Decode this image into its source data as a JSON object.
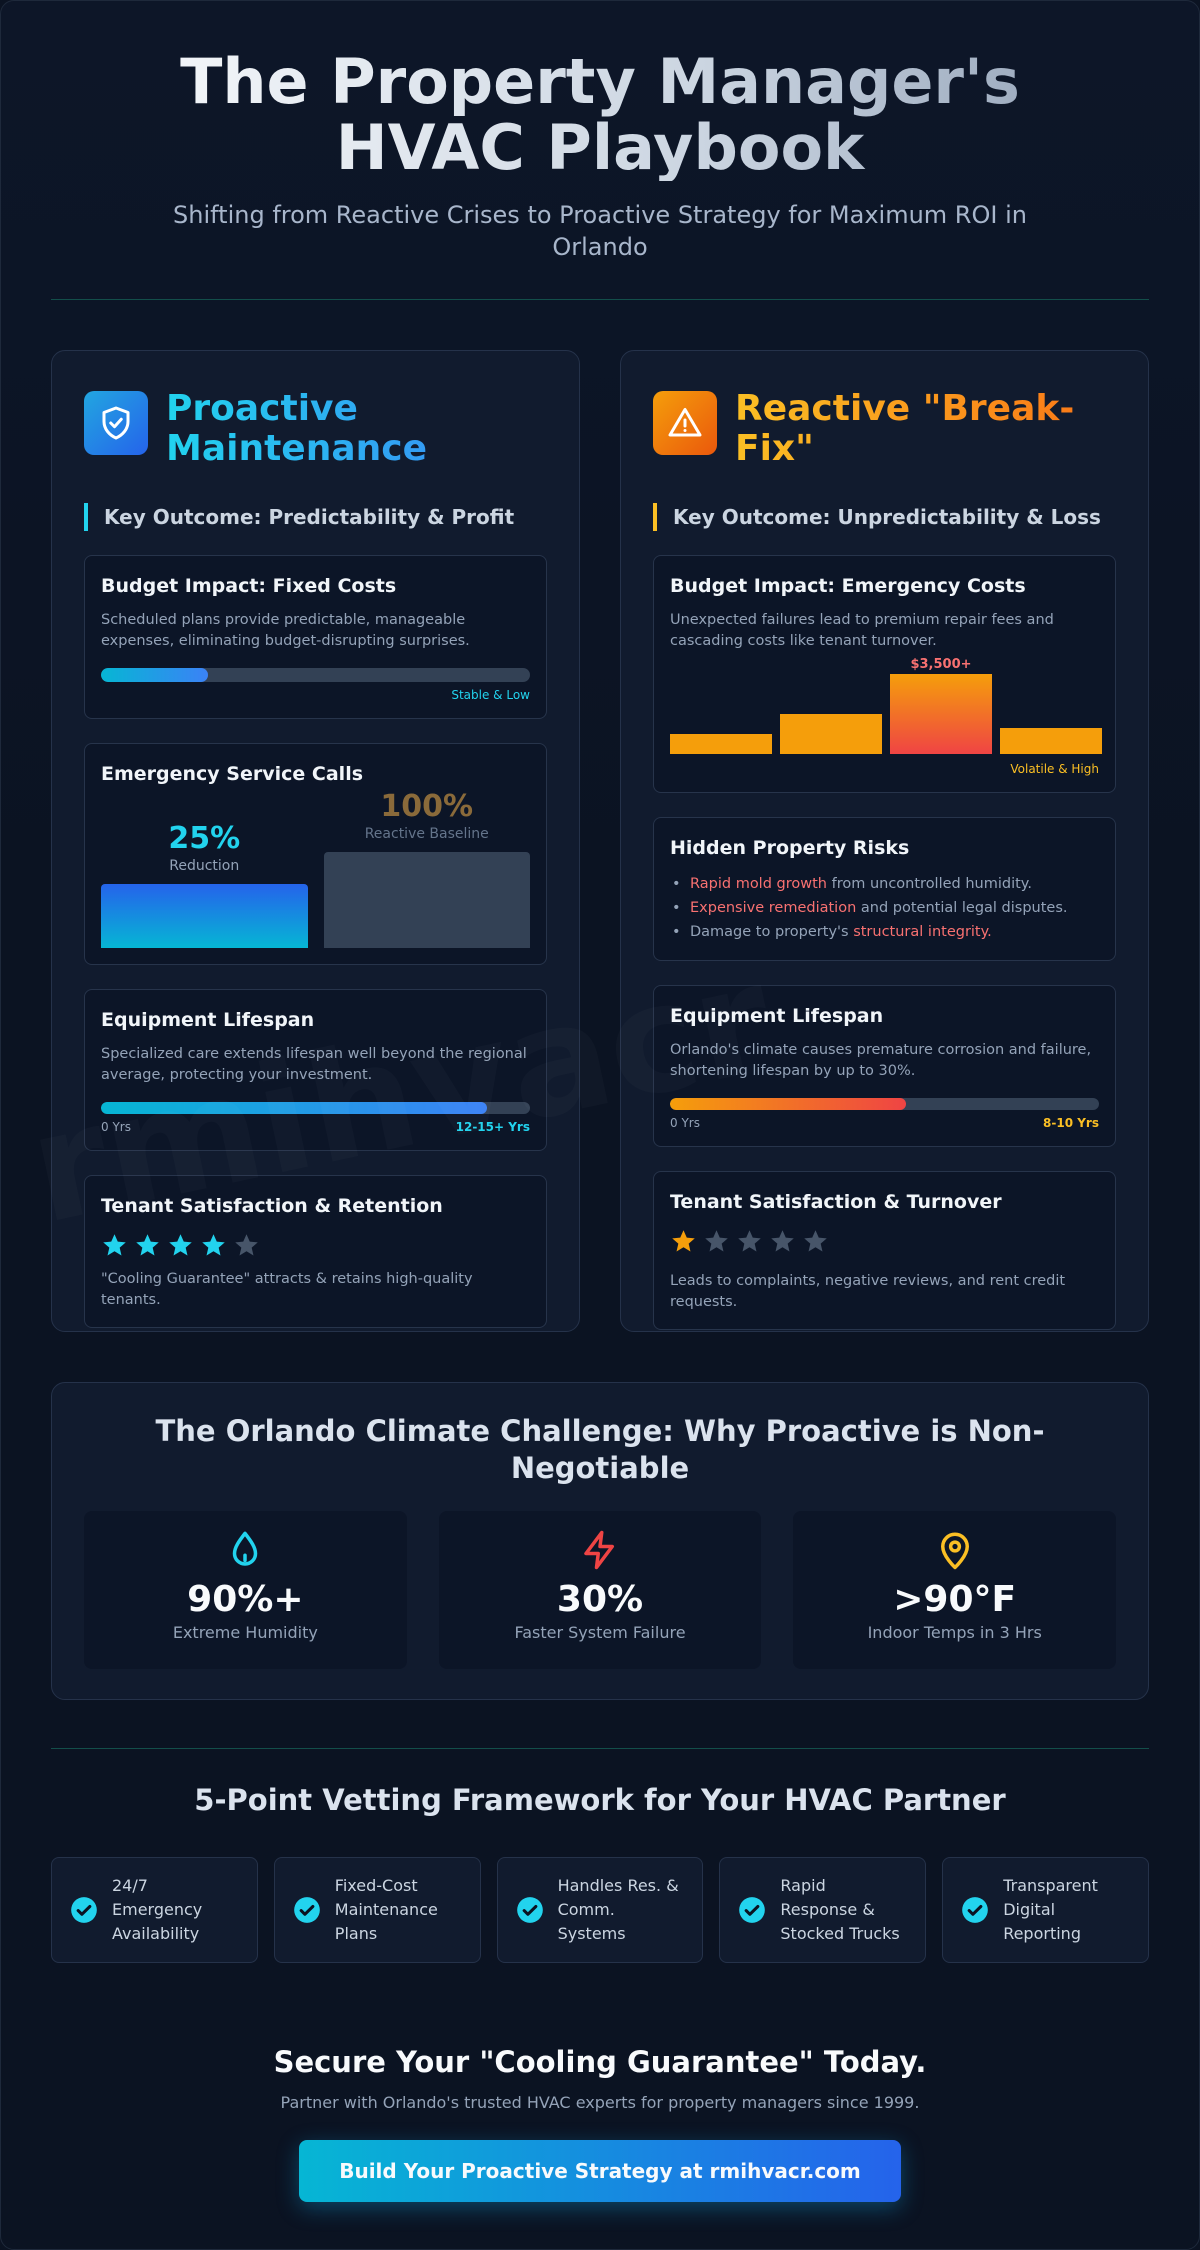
{
  "header": {
    "title": "The Property Manager's HVAC Playbook",
    "subtitle": "Shifting from Reactive Crises to Proactive Strategy for Maximum ROI in Orlando"
  },
  "watermark": "rmihvacr",
  "proactive": {
    "icon": "shield-check-icon",
    "title": "Proactive Maintenance",
    "outcome": "Key Outcome: Predictability & Profit",
    "budget": {
      "title": "Budget Impact: Fixed Costs",
      "text": "Scheduled plans provide predictable, manageable expenses, eliminating budget-disrupting surprises.",
      "level": 0.25,
      "caption": "Stable & Low"
    },
    "calls": {
      "title": "Emergency Service Calls",
      "reduction_value": "25%",
      "reduction_label": "Reduction",
      "baseline_value": "100%",
      "baseline_label": "Reactive Baseline"
    },
    "lifespan": {
      "title": "Equipment Lifespan",
      "text": "Specialized care extends lifespan well beyond the regional average, protecting your investment.",
      "level": 0.9,
      "start": "0 Yrs",
      "end": "12-15+ Yrs"
    },
    "tenant": {
      "title": "Tenant Satisfaction & Retention",
      "rating": 4,
      "max": 5,
      "text": "\"Cooling Guarantee\" attracts & retains high-quality tenants."
    }
  },
  "reactive": {
    "icon": "warning-triangle-icon",
    "title": "Reactive \"Break-Fix\"",
    "outcome": "Key Outcome: Unpredictability & Loss",
    "budget": {
      "title": "Budget Impact: Emergency Costs",
      "text": "Unexpected failures lead to premium repair fees and cascading costs like tenant turnover.",
      "spike_label": "$3,500+",
      "bar_levels": [
        0.25,
        0.5,
        1.0,
        0.33
      ],
      "caption": "Volatile & High"
    },
    "risks": {
      "title": "Hidden Property Risks",
      "items": [
        {
          "highlight": "Rapid mold growth",
          "rest": " from uncontrolled humidity."
        },
        {
          "highlight": "Expensive remediation",
          "rest": " and potential legal disputes."
        },
        {
          "prefix": "Damage to property's ",
          "highlight": "structural integrity."
        }
      ]
    },
    "lifespan": {
      "title": "Equipment Lifespan",
      "text": "Orlando's climate causes premature corrosion and failure, shortening lifespan by up to 30%.",
      "level": 0.55,
      "start": "0 Yrs",
      "end": "8-10 Yrs"
    },
    "tenant": {
      "title": "Tenant Satisfaction & Turnover",
      "rating": 1,
      "max": 5,
      "text": "Leads to complaints, negative reviews, and rent credit requests."
    }
  },
  "climate": {
    "title": "The Orlando Climate Challenge: Why Proactive is Non-Negotiable",
    "stats": [
      {
        "icon": "droplet-icon",
        "value": "90%+",
        "label": "Extreme Humidity",
        "color": "#22d3ee"
      },
      {
        "icon": "lightning-icon",
        "value": "30%",
        "label": "Faster System Failure",
        "color": "#ef4444"
      },
      {
        "icon": "map-pin-icon",
        "value": ">90°F",
        "label": "Indoor Temps in 3 Hrs",
        "color": "#fbbf24"
      }
    ]
  },
  "vetting": {
    "title": "5-Point Vetting Framework for Your HVAC Partner",
    "items": [
      "24/7 Emergency Availability",
      "Fixed-Cost Maintenance Plans",
      "Handles Res. & Comm. Systems",
      "Rapid Response & Stocked Trucks",
      "Transparent Digital Reporting"
    ]
  },
  "cta": {
    "title": "Secure Your \"Cooling Guarantee\" Today.",
    "subtitle": "Partner with Orlando's trusted HVAC experts for property managers since 1999.",
    "button": "Build Your Proactive Strategy at rmihvacr.com"
  },
  "colors": {
    "accent_blue": "#22d3ee",
    "accent_orange": "#f59e0b",
    "danger": "#ef4444",
    "star_empty": "#475569"
  }
}
